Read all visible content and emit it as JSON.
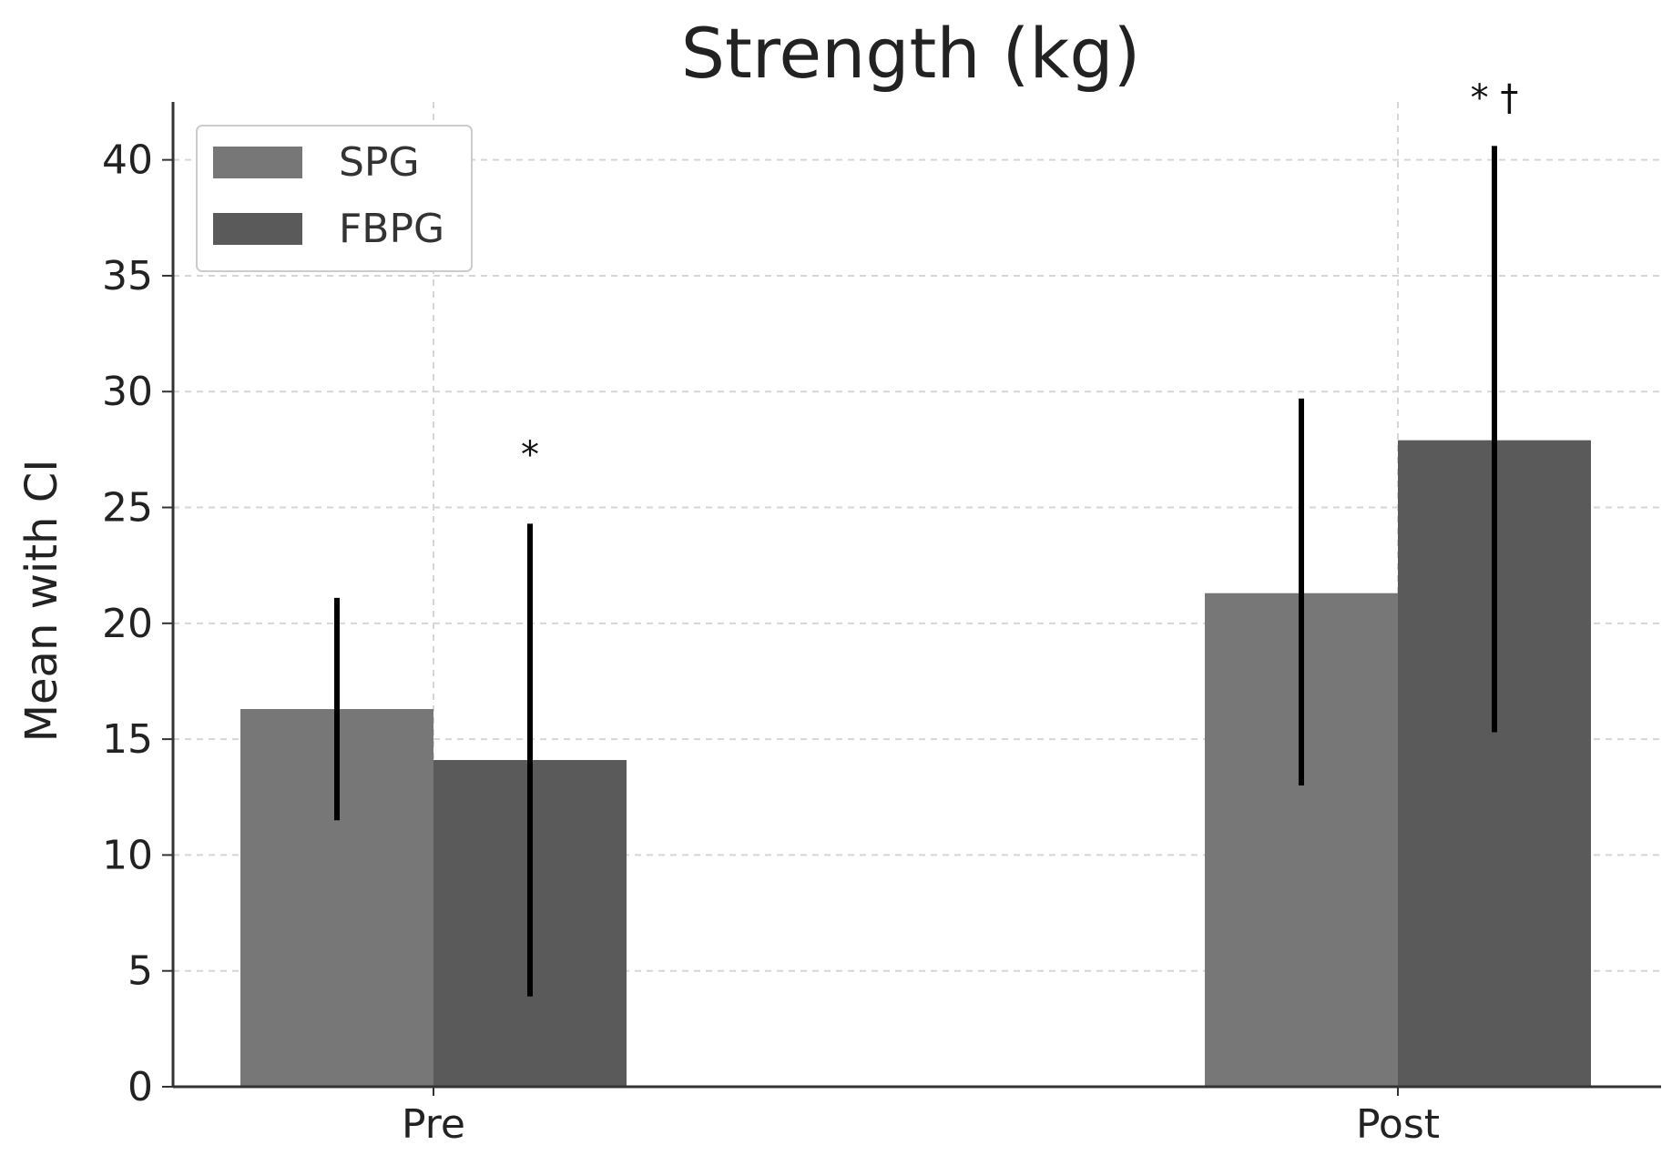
{
  "chart_data": {
    "type": "bar",
    "title": "Strength (kg)",
    "xlabel": "",
    "ylabel": "Mean with CI",
    "categories": [
      "Pre",
      "Post"
    ],
    "series": [
      {
        "name": "SPG",
        "values": [
          16.3,
          21.3
        ],
        "ci_low": [
          11.5,
          13.0
        ],
        "ci_high": [
          21.1,
          29.7
        ],
        "color": "#777777"
      },
      {
        "name": "FBPG",
        "values": [
          14.1,
          27.9
        ],
        "ci_low": [
          3.9,
          15.3
        ],
        "ci_high": [
          24.3,
          40.6
        ],
        "color": "#5a5a5a"
      }
    ],
    "ylim": [
      0,
      42.5
    ],
    "yticks": [
      0,
      5,
      10,
      15,
      20,
      25,
      30,
      35,
      40
    ],
    "grid": true,
    "legend_position": "top-left",
    "annotations": [
      {
        "category": "Pre",
        "series": "FBPG",
        "text": "*",
        "y": 27.3
      },
      {
        "category": "Post",
        "series": "FBPG",
        "text": "* †",
        "y": 42.7
      }
    ]
  }
}
